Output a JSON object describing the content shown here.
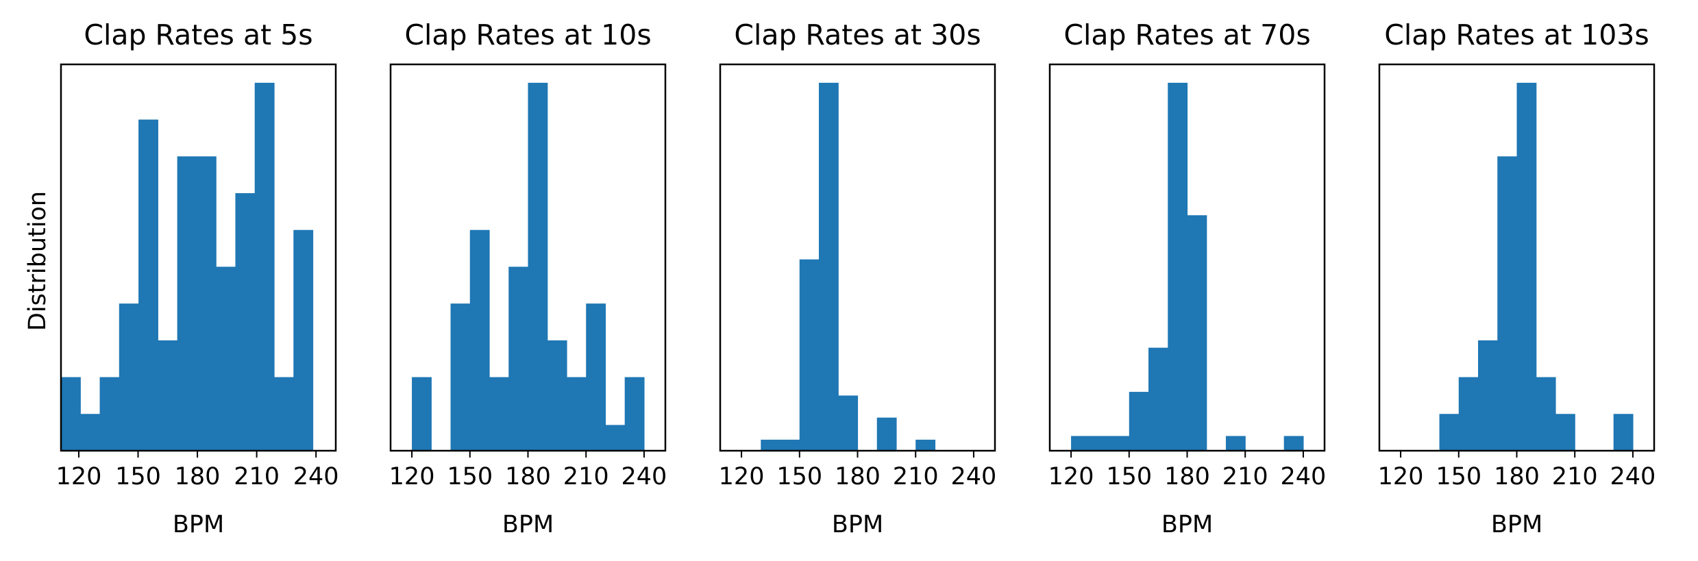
{
  "chart_data": {
    "type": "bar",
    "histogram": true,
    "bar_color": "#1f77b4",
    "grid": false,
    "legend": "none",
    "xlabel": "BPM",
    "ylabel": "Distribution",
    "ytick_labels": false,
    "xticks": [
      120,
      150,
      180,
      210,
      240
    ],
    "xtick_labels": [
      "120",
      "150",
      "180",
      "210",
      "240"
    ],
    "panels": [
      {
        "title": "Clap Rates at 5s",
        "xlim": [
          111,
          250
        ],
        "ylim": [
          0,
          10.5
        ],
        "bins": [
          {
            "x0": 111,
            "x1": 120.8,
            "count": 2
          },
          {
            "x0": 120.8,
            "x1": 130.6,
            "count": 1
          },
          {
            "x0": 130.6,
            "x1": 140.4,
            "count": 2
          },
          {
            "x0": 140.4,
            "x1": 150.2,
            "count": 4
          },
          {
            "x0": 150.2,
            "x1": 160.0,
            "count": 9
          },
          {
            "x0": 160.0,
            "x1": 169.8,
            "count": 3
          },
          {
            "x0": 169.8,
            "x1": 179.6,
            "count": 8
          },
          {
            "x0": 179.6,
            "x1": 189.4,
            "count": 8
          },
          {
            "x0": 189.4,
            "x1": 199.2,
            "count": 5
          },
          {
            "x0": 199.2,
            "x1": 209.0,
            "count": 7
          },
          {
            "x0": 209.0,
            "x1": 218.8,
            "count": 10
          },
          {
            "x0": 218.8,
            "x1": 228.6,
            "count": 2
          },
          {
            "x0": 228.6,
            "x1": 238.4,
            "count": 6
          }
        ]
      },
      {
        "title": "Clap Rates at 10s",
        "xlim": [
          109,
          251
        ],
        "ylim": [
          0,
          10.5
        ],
        "bins": [
          {
            "x0": 120,
            "x1": 130,
            "count": 2
          },
          {
            "x0": 130,
            "x1": 140,
            "count": 0
          },
          {
            "x0": 140,
            "x1": 150,
            "count": 4
          },
          {
            "x0": 150,
            "x1": 160,
            "count": 6
          },
          {
            "x0": 160,
            "x1": 170,
            "count": 2
          },
          {
            "x0": 170,
            "x1": 180,
            "count": 5
          },
          {
            "x0": 180,
            "x1": 190,
            "count": 10
          },
          {
            "x0": 190,
            "x1": 200,
            "count": 3
          },
          {
            "x0": 200,
            "x1": 210,
            "count": 2
          },
          {
            "x0": 210,
            "x1": 220,
            "count": 4
          },
          {
            "x0": 220,
            "x1": 230,
            "count": 0.7
          },
          {
            "x0": 230,
            "x1": 240,
            "count": 2
          }
        ]
      },
      {
        "title": "Clap Rates at 30s",
        "xlim": [
          109,
          251
        ],
        "ylim": [
          0,
          10.5
        ],
        "bins": [
          {
            "x0": 130,
            "x1": 150,
            "count": 0.3
          },
          {
            "x0": 150,
            "x1": 160,
            "count": 5.2
          },
          {
            "x0": 160,
            "x1": 170,
            "count": 10
          },
          {
            "x0": 170,
            "x1": 180,
            "count": 1.5
          },
          {
            "x0": 190,
            "x1": 200,
            "count": 0.9
          },
          {
            "x0": 210,
            "x1": 220,
            "count": 0.3
          }
        ]
      },
      {
        "title": "Clap Rates at 70s",
        "xlim": [
          109,
          251
        ],
        "ylim": [
          0,
          10.5
        ],
        "bins": [
          {
            "x0": 120,
            "x1": 150,
            "count": 0.4
          },
          {
            "x0": 150,
            "x1": 160,
            "count": 1.6
          },
          {
            "x0": 160,
            "x1": 170,
            "count": 2.8
          },
          {
            "x0": 170,
            "x1": 180,
            "count": 10
          },
          {
            "x0": 180,
            "x1": 190,
            "count": 6.4
          },
          {
            "x0": 200,
            "x1": 210,
            "count": 0.4
          },
          {
            "x0": 230,
            "x1": 240,
            "count": 0.4
          }
        ]
      },
      {
        "title": "Clap Rates at 103s",
        "xlim": [
          109,
          251
        ],
        "ylim": [
          0,
          10.5
        ],
        "bins": [
          {
            "x0": 140,
            "x1": 150,
            "count": 1
          },
          {
            "x0": 150,
            "x1": 160,
            "count": 2
          },
          {
            "x0": 160,
            "x1": 170,
            "count": 3
          },
          {
            "x0": 170,
            "x1": 180,
            "count": 8
          },
          {
            "x0": 180,
            "x1": 190,
            "count": 10
          },
          {
            "x0": 190,
            "x1": 200,
            "count": 2
          },
          {
            "x0": 200,
            "x1": 210,
            "count": 1
          },
          {
            "x0": 230,
            "x1": 240,
            "count": 1
          }
        ]
      }
    ]
  }
}
